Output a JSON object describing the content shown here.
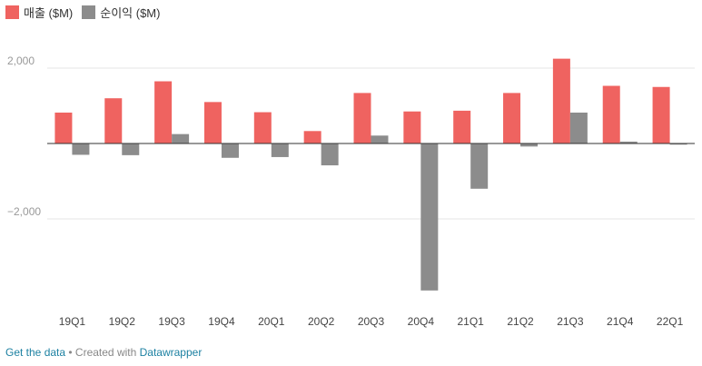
{
  "legend": {
    "items": [
      {
        "label": "매출 ($M)",
        "color": "#ef6360"
      },
      {
        "label": "순이익 ($M)",
        "color": "#8c8c8c"
      }
    ]
  },
  "footer": {
    "get_data_label": "Get the data",
    "separator": " • Created with ",
    "tool_label": "Datawrapper"
  },
  "chart_data": {
    "type": "bar",
    "categories": [
      "19Q1",
      "19Q2",
      "19Q3",
      "19Q4",
      "20Q1",
      "20Q2",
      "20Q3",
      "20Q4",
      "21Q1",
      "21Q2",
      "21Q3",
      "21Q4",
      "22Q1"
    ],
    "series": [
      {
        "name": "매출 ($M)",
        "color": "#ef6360",
        "values": [
          820,
          1200,
          1650,
          1100,
          830,
          330,
          1340,
          850,
          870,
          1340,
          2250,
          1530,
          1500
        ]
      },
      {
        "name": "순이익 ($M)",
        "color": "#8c8c8c",
        "values": [
          -300,
          -310,
          250,
          -380,
          -360,
          -580,
          210,
          -3900,
          -1200,
          -80,
          820,
          50,
          -30
        ]
      }
    ],
    "yticks": [
      2000,
      0,
      -2000
    ],
    "ytick_labels": [
      "2,000",
      "",
      "−2,000"
    ],
    "ylim": [
      -4100,
      2400
    ],
    "grid": true,
    "legend_position": "top-left",
    "title": "",
    "xlabel": "",
    "ylabel": ""
  }
}
